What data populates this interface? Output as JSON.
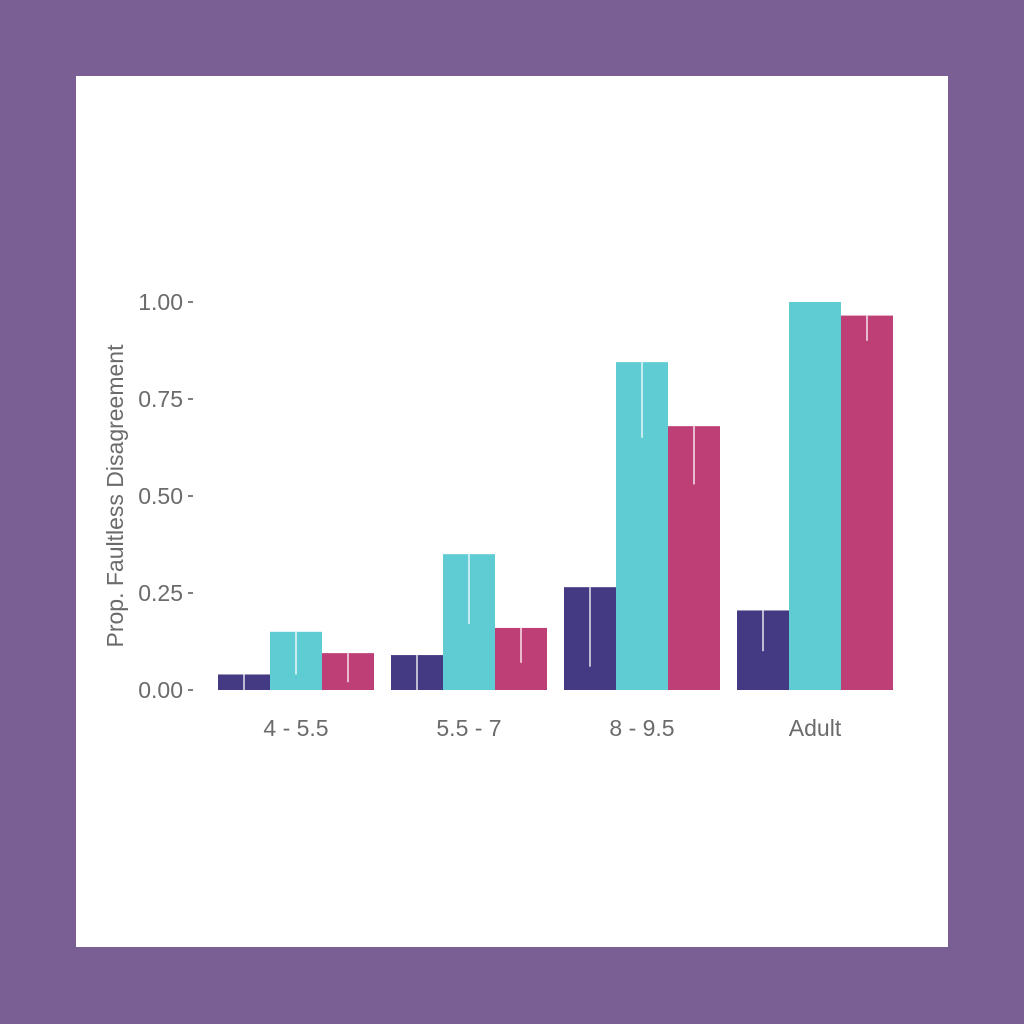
{
  "chart_data": {
    "type": "bar",
    "title": "",
    "xlabel": "",
    "ylabel": "Prop. Faultless Disagreement",
    "ylim": [
      0,
      1
    ],
    "yticks": [
      "0.00",
      "0.25",
      "0.50",
      "0.75",
      "1.00"
    ],
    "categories": [
      "4 - 5.5",
      "5.5 - 7",
      "8 - 9.5",
      "Adult"
    ],
    "grid": false,
    "legend": "none",
    "series": [
      {
        "color": "#443983",
        "values": [
          0.04,
          0.09,
          0.265,
          0.205
        ],
        "err_low": [
          0.0,
          0.0,
          0.06,
          0.1
        ]
      },
      {
        "color": "#5fcbd2",
        "values": [
          0.15,
          0.35,
          0.845,
          1.0
        ],
        "err_low": [
          0.04,
          0.17,
          0.65,
          1.0
        ]
      },
      {
        "color": "#bd3f75",
        "values": [
          0.095,
          0.16,
          0.68,
          0.965
        ],
        "err_low": [
          0.02,
          0.07,
          0.53,
          0.9
        ]
      }
    ]
  }
}
